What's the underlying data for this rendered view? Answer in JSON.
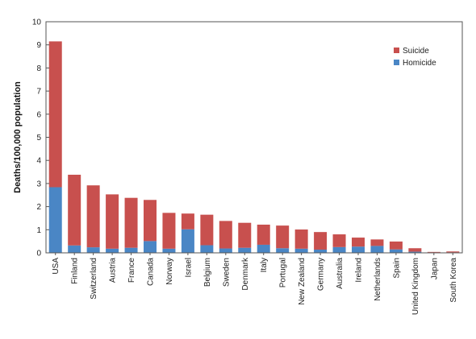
{
  "chart_data": {
    "type": "bar",
    "stacked": true,
    "title": "",
    "xlabel": "",
    "ylabel": "Deaths/100,000 population",
    "ylim": [
      0,
      10
    ],
    "yticks": [
      0,
      1,
      2,
      3,
      4,
      5,
      6,
      7,
      8,
      9,
      10
    ],
    "grid": false,
    "legend_position": "top-right",
    "categories": [
      "USA",
      "Finland",
      "Switzerland",
      "Austria",
      "France",
      "Canada",
      "Norway",
      "Israel",
      "Belgium",
      "Sweden",
      "Denmark",
      "Italy",
      "Portugal",
      "New Zealand",
      "Germany",
      "Australia",
      "Ireland",
      "Netherlands",
      "Spain",
      "United Kingdom",
      "Japan",
      "South Korea"
    ],
    "series": [
      {
        "name": "Homicide",
        "color": "#4a86c5",
        "values": [
          2.84,
          0.32,
          0.24,
          0.18,
          0.22,
          0.51,
          0.18,
          1.02,
          0.33,
          0.19,
          0.22,
          0.35,
          0.2,
          0.18,
          0.14,
          0.25,
          0.27,
          0.3,
          0.15,
          0.05,
          0.02,
          0.02
        ]
      },
      {
        "name": "Suicide",
        "color": "#c8504e",
        "values": [
          6.31,
          3.06,
          2.68,
          2.35,
          2.16,
          1.78,
          1.55,
          0.68,
          1.32,
          1.19,
          1.08,
          0.87,
          0.98,
          0.83,
          0.76,
          0.55,
          0.39,
          0.28,
          0.34,
          0.15,
          0.02,
          0.04
        ]
      }
    ],
    "legend": [
      {
        "label": "Suicide",
        "color": "#c8504e"
      },
      {
        "label": "Homicide",
        "color": "#4a86c5"
      }
    ]
  }
}
